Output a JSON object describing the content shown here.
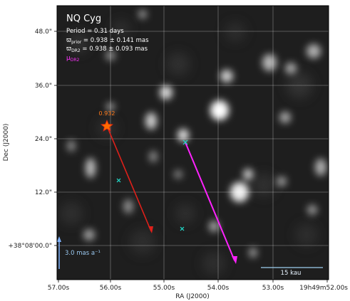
{
  "annotation": {
    "star_name": "NQ Cyg",
    "period": "Period =    0.31 days",
    "parallax_prior_pre": "ϖ",
    "parallax_prior_sub": "prior",
    "parallax_prior_value": " = 0.938 ± 0.141 mas",
    "parallax_dr2_pre": "ϖ",
    "parallax_dr2_sub": "DR2",
    "parallax_dr2_value": " = 0.938 ± 0.093 mas",
    "pm_pre": "μ",
    "pm_sub": "DR2",
    "prior_marker_label": "0.932"
  },
  "axes": {
    "xlabel": "RA (J2000)",
    "ylabel": "Dec (J2000)",
    "x_ticks": [
      "57.00s",
      "56.00s",
      "55.00s",
      "54.00s",
      "53.00s",
      "19h49m52.00s"
    ],
    "y_ticks": [
      "48.0\"",
      "36.0\"",
      "24.0\"",
      "12.0\"",
      "+38°08'00.0\""
    ]
  },
  "scale_bars": {
    "pm_scale_label": "3.0 mas a⁻¹",
    "distance_scale_label": "15 kau"
  },
  "colors": {
    "prior_arrow": "#e0201a",
    "dr2_arrow": "#ff22ff",
    "cross": "#22ddcc",
    "pm_scale": "#7fb2ff",
    "star_marker": "#ff6a00",
    "dist_scale": "#9fd0f0"
  }
}
